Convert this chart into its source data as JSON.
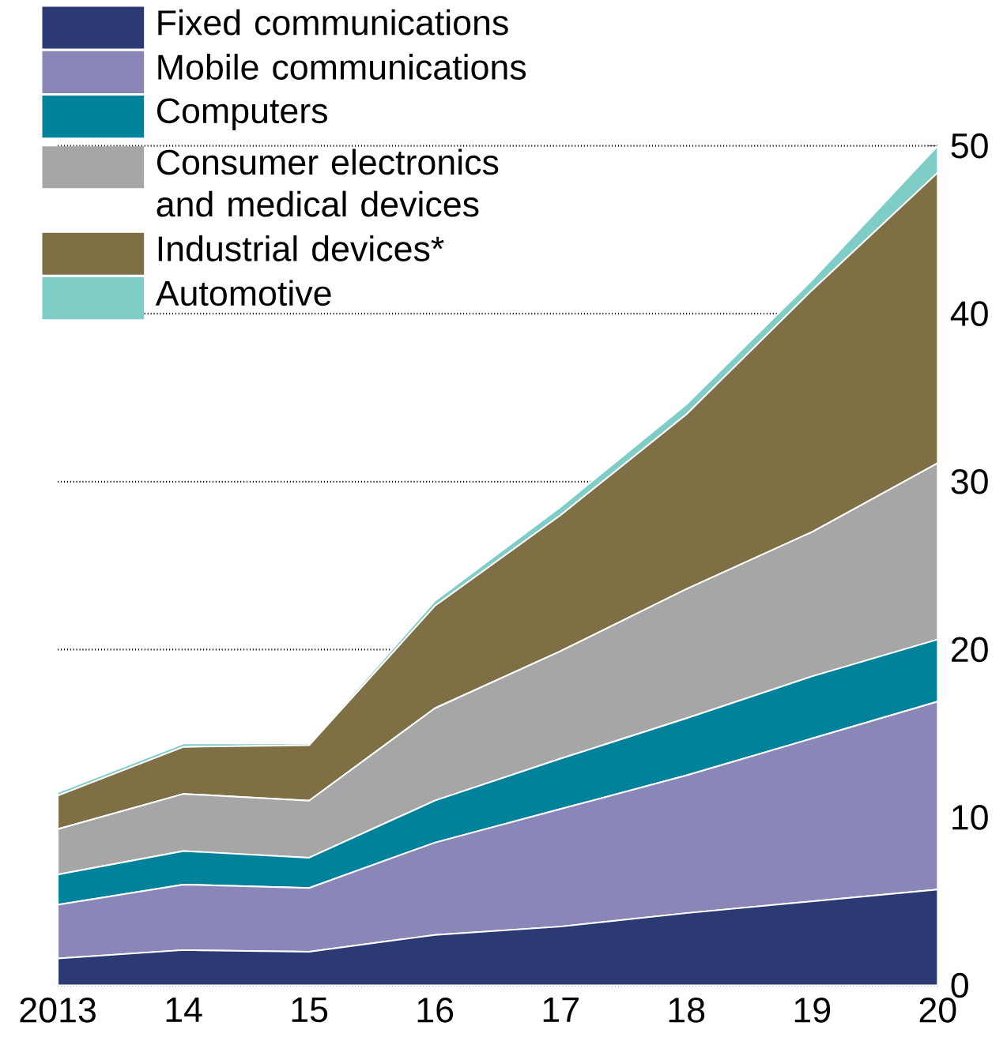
{
  "chart_data": {
    "type": "area",
    "stacked": true,
    "categories": [
      "2013",
      "14",
      "15",
      "16",
      "17",
      "18",
      "19",
      "20"
    ],
    "series": [
      {
        "name": "Fixed communications",
        "color": "#2b3a73",
        "values": [
          1.6,
          2.1,
          2.0,
          3.0,
          3.5,
          4.3,
          5.0,
          5.7
        ]
      },
      {
        "name": "Mobile communications",
        "color": "#8b86b8",
        "values": [
          3.2,
          3.9,
          3.8,
          5.5,
          7.0,
          8.2,
          9.7,
          11.2
        ]
      },
      {
        "name": "Computers",
        "color": "#00839a",
        "values": [
          1.8,
          2.0,
          1.8,
          2.5,
          3.0,
          3.4,
          3.7,
          3.7
        ]
      },
      {
        "name": "Consumer electronics and medical devices",
        "color": "#a6a6a6",
        "values": [
          2.7,
          3.4,
          3.4,
          5.5,
          6.4,
          7.7,
          8.6,
          10.5
        ]
      },
      {
        "name": "Industrial devices*",
        "color": "#7f6f44",
        "values": [
          2.0,
          2.8,
          3.3,
          6.1,
          8.1,
          10.4,
          14.4,
          17.3
        ]
      },
      {
        "name": "Automotive",
        "color": "#7ecdc7",
        "values": [
          0.2,
          0.2,
          0.1,
          0.3,
          0.5,
          0.6,
          0.6,
          1.6
        ]
      }
    ],
    "ylim": [
      0,
      50
    ],
    "yticks": [
      0,
      10,
      20,
      30,
      40,
      50
    ],
    "grid": "y",
    "legend": "top left"
  }
}
